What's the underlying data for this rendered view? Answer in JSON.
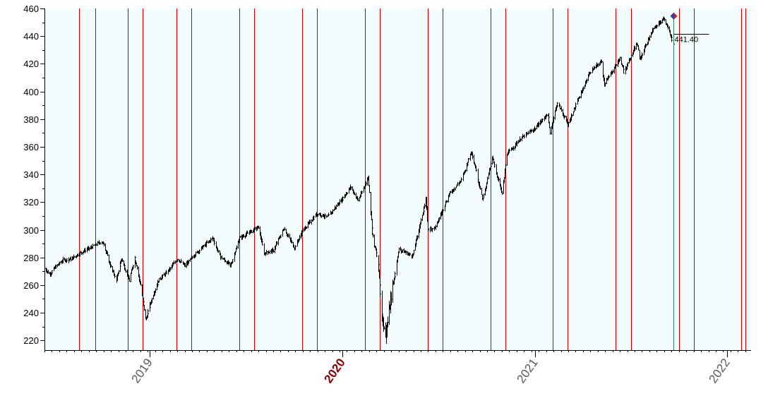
{
  "chart_data": {
    "type": "candlestick",
    "title": "",
    "xlabel": "",
    "ylabel": "",
    "ylim": [
      213,
      460
    ],
    "y_ticks": [
      220,
      240,
      260,
      280,
      300,
      320,
      340,
      360,
      380,
      400,
      420,
      440,
      460
    ],
    "x_range": [
      "2018-06-15",
      "2022-02-15"
    ],
    "x_ticks": [
      {
        "date": "2019-01-01",
        "label": "2019",
        "highlight": false
      },
      {
        "date": "2020-01-01",
        "label": "2020",
        "highlight": true
      },
      {
        "date": "2021-01-01",
        "label": "2021",
        "highlight": false
      },
      {
        "date": "2022-01-01",
        "label": "2022",
        "highlight": false
      }
    ],
    "grid": false,
    "background_color": "#f3fdfd",
    "bar_color": "#000000",
    "vline_color": "#cc0000",
    "current_line_color": "#2e7d5b",
    "marker_color": "#1f3fbf",
    "marker_accent": "#d61b1b",
    "red_vertical_lines": [
      "2018-08-20",
      "2018-09-19",
      "2018-11-20",
      "2018-12-18",
      "2019-02-21",
      "2019-03-21",
      "2019-06-20",
      "2019-07-18",
      "2019-10-17",
      "2019-11-14",
      "2020-02-13",
      "2020-03-12",
      "2020-06-11",
      "2020-07-10",
      "2020-10-09",
      "2020-11-06",
      "2021-02-04",
      "2021-03-04",
      "2021-06-03",
      "2021-07-02",
      "2021-10-01",
      "2021-10-29",
      "2022-01-27",
      "2022-02-04"
    ],
    "current_date": "2021-09-20",
    "current_value_label": "441.40",
    "current_value": 441.4,
    "peak": {
      "date": "2021-09-02",
      "value": 454
    },
    "series": [
      {
        "anchors": [
          [
            "2018-06-15",
            272
          ],
          [
            "2018-06-25",
            268
          ],
          [
            "2018-07-05",
            273
          ],
          [
            "2018-07-20",
            278
          ],
          [
            "2018-08-05",
            279
          ],
          [
            "2018-08-20",
            283
          ],
          [
            "2018-09-10",
            287
          ],
          [
            "2018-09-28",
            291
          ],
          [
            "2018-10-05",
            290
          ],
          [
            "2018-10-15",
            277
          ],
          [
            "2018-10-29",
            263
          ],
          [
            "2018-11-08",
            279
          ],
          [
            "2018-11-23",
            263
          ],
          [
            "2018-12-03",
            280
          ],
          [
            "2018-12-14",
            260
          ],
          [
            "2018-12-24",
            235
          ],
          [
            "2019-01-04",
            250
          ],
          [
            "2019-01-18",
            264
          ],
          [
            "2019-02-04",
            270
          ],
          [
            "2019-02-22",
            279
          ],
          [
            "2019-03-08",
            274
          ],
          [
            "2019-03-22",
            280
          ],
          [
            "2019-04-12",
            288
          ],
          [
            "2019-04-30",
            294
          ],
          [
            "2019-05-13",
            281
          ],
          [
            "2019-06-03",
            274
          ],
          [
            "2019-06-20",
            294
          ],
          [
            "2019-07-26",
            302
          ],
          [
            "2019-08-05",
            283
          ],
          [
            "2019-08-23",
            285
          ],
          [
            "2019-09-12",
            301
          ],
          [
            "2019-10-02",
            287
          ],
          [
            "2019-10-17",
            299
          ],
          [
            "2019-11-15",
            312
          ],
          [
            "2019-12-03",
            309
          ],
          [
            "2019-12-31",
            322
          ],
          [
            "2020-01-17",
            331
          ],
          [
            "2020-01-31",
            321
          ],
          [
            "2020-02-19",
            338
          ],
          [
            "2020-02-27",
            297
          ],
          [
            "2020-03-09",
            275
          ],
          [
            "2020-03-16",
            240
          ],
          [
            "2020-03-23",
            222
          ],
          [
            "2020-04-01",
            247
          ],
          [
            "2020-04-17",
            286
          ],
          [
            "2020-05-13",
            281
          ],
          [
            "2020-06-08",
            322
          ],
          [
            "2020-06-11",
            300
          ],
          [
            "2020-06-26",
            302
          ],
          [
            "2020-07-22",
            326
          ],
          [
            "2020-08-14",
            336
          ],
          [
            "2020-09-02",
            357
          ],
          [
            "2020-09-23",
            322
          ],
          [
            "2020-10-12",
            352
          ],
          [
            "2020-10-30",
            326
          ],
          [
            "2020-11-09",
            355
          ],
          [
            "2020-12-04",
            366
          ],
          [
            "2020-12-31",
            373
          ],
          [
            "2021-01-25",
            384
          ],
          [
            "2021-01-29",
            370
          ],
          [
            "2021-02-12",
            392
          ],
          [
            "2021-03-04",
            376
          ],
          [
            "2021-03-19",
            390
          ],
          [
            "2021-04-15",
            414
          ],
          [
            "2021-05-07",
            422
          ],
          [
            "2021-05-12",
            405
          ],
          [
            "2021-06-11",
            424
          ],
          [
            "2021-06-18",
            414
          ],
          [
            "2021-07-13",
            435
          ],
          [
            "2021-07-19",
            424
          ],
          [
            "2021-08-13",
            445
          ],
          [
            "2021-09-02",
            453
          ],
          [
            "2021-09-10",
            446
          ],
          [
            "2021-09-20",
            434
          ]
        ]
      }
    ]
  }
}
